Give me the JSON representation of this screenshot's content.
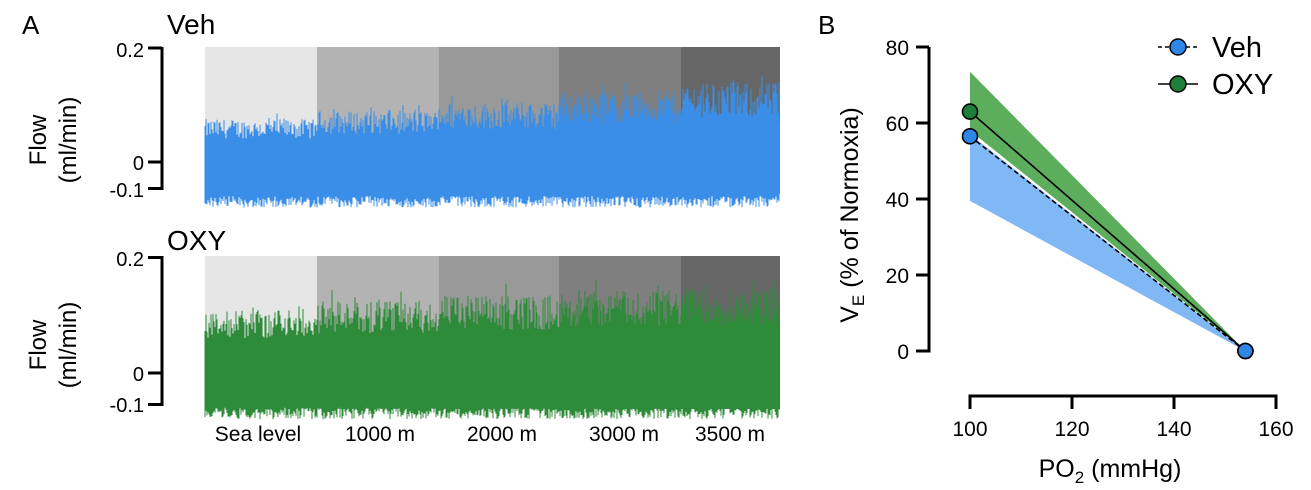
{
  "panel_a": {
    "letter": "A",
    "ylabel_line1": "Flow",
    "ylabel_line2": "(ml/min)",
    "y_ticks": [
      "0.2",
      "0",
      "-0.1"
    ],
    "segments": [
      "Sea level",
      "1000 m",
      "2000 m",
      "3000 m",
      "3500 m"
    ],
    "segment_shades": [
      "#e6e6e6",
      "#b3b3b3",
      "#999999",
      "#7f7f7f",
      "#666666"
    ],
    "traces": [
      {
        "label": "Veh",
        "color": "#3a8ee8",
        "upper_envelope": [
          0.075,
          0.09,
          0.105,
          0.125,
          0.14
        ],
        "lower_envelope": [
          -0.08,
          -0.08,
          -0.08,
          -0.08,
          -0.08
        ]
      },
      {
        "label": "OXY",
        "color": "#2e8b3a",
        "upper_envelope": [
          0.11,
          0.125,
          0.135,
          0.145,
          0.15
        ],
        "lower_envelope": [
          -0.08,
          -0.08,
          -0.08,
          -0.08,
          -0.08
        ]
      }
    ]
  },
  "panel_b": {
    "letter": "B",
    "xlabel_main": "PO",
    "xlabel_sub": "2",
    "xlabel_unit": " (mmHg)",
    "ylabel_main": "V",
    "ylabel_sub": "E",
    "ylabel_rest": " (% of Normoxia)"
  },
  "chart_data": {
    "type": "line",
    "x": [
      100,
      154
    ],
    "xlim": [
      100,
      160
    ],
    "ylim": [
      0,
      80
    ],
    "x_ticks": [
      "100",
      "120",
      "140",
      "160"
    ],
    "y_ticks": [
      "0",
      "20",
      "40",
      "60",
      "80"
    ],
    "legend_position": "top-right",
    "series": [
      {
        "name": "Veh",
        "values": [
          56.5,
          0
        ],
        "band_upper": [
          57,
          0
        ],
        "band_lower": [
          39.5,
          0
        ],
        "color": "#2f86e6",
        "band_color": "#80b8f5",
        "line_style": "dashed"
      },
      {
        "name": "OXY",
        "values": [
          63,
          0
        ],
        "band_upper": [
          73.5,
          0
        ],
        "band_lower": [
          58,
          0
        ],
        "color": "#1e7e3a",
        "band_color": "#5cae5c",
        "line_style": "solid"
      }
    ]
  }
}
